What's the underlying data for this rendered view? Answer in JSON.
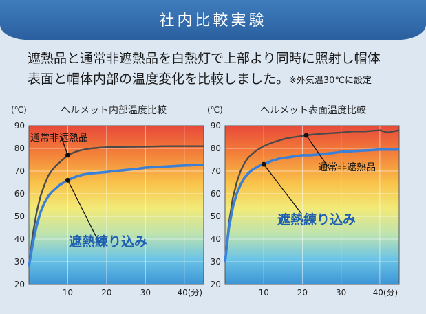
{
  "header": {
    "title": "社内比較実験"
  },
  "intro": {
    "line1": "遮熱品と通常非遮熱品を白熱灯で上部より同時に照射し帽体",
    "line2": "表面と帽体内部の温度変化を比較しました。",
    "note": "※外気温30℃に設定"
  },
  "chart_data": [
    {
      "type": "line",
      "title": "ヘルメット内部温度比較",
      "xlabel": "(分)",
      "ylabel": "(℃)",
      "xlim": [
        0,
        45
      ],
      "ylim": [
        20,
        90
      ],
      "x_ticks": [
        10,
        20,
        30,
        40
      ],
      "x_tick_labels": [
        "10",
        "20",
        "30",
        "40(分)"
      ],
      "y_ticks": [
        20,
        30,
        40,
        50,
        60,
        70,
        80,
        90
      ],
      "grid": true,
      "series": [
        {
          "name": "通常非遮熱品",
          "color": "#4a4a4a",
          "x": [
            0,
            1,
            2,
            3,
            4,
            5,
            6,
            7,
            8,
            9,
            10,
            12,
            14,
            16,
            18,
            20,
            25,
            30,
            35,
            40,
            45
          ],
          "y": [
            28,
            42,
            52,
            59,
            64,
            68,
            70.5,
            72.5,
            74,
            75.5,
            77,
            78.5,
            79.5,
            80,
            80.3,
            80.5,
            80.7,
            80.8,
            81,
            81,
            81
          ]
        },
        {
          "name": "遮熱練り込み",
          "color": "#3a80d6",
          "x": [
            0,
            1,
            2,
            3,
            4,
            5,
            6,
            7,
            8,
            9,
            10,
            12,
            14,
            16,
            18,
            20,
            22,
            25,
            28,
            30,
            35,
            40,
            45
          ],
          "y": [
            28,
            38,
            46,
            52,
            56,
            59,
            61,
            62.5,
            64,
            65,
            66,
            67.5,
            68.5,
            69,
            69.3,
            69.6,
            70,
            70.5,
            71,
            71.5,
            72,
            72.5,
            72.8
          ]
        }
      ],
      "annotations": [
        {
          "text": "通常非遮熱品",
          "series": "通常非遮熱品",
          "at_x": 10
        },
        {
          "text": "遮熱練り込み",
          "series": "遮熱練り込み",
          "at_x": 10
        }
      ]
    },
    {
      "type": "line",
      "title": "ヘルメット表面温度比較",
      "xlabel": "(分)",
      "ylabel": "(℃)",
      "xlim": [
        0,
        45
      ],
      "ylim": [
        20,
        90
      ],
      "x_ticks": [
        10,
        20,
        30,
        40
      ],
      "x_tick_labels": [
        "10",
        "20",
        "30",
        "40(分)"
      ],
      "y_ticks": [
        20,
        30,
        40,
        50,
        60,
        70,
        80,
        90
      ],
      "grid": true,
      "series": [
        {
          "name": "通常非遮熱品",
          "color": "#4a4a4a",
          "x": [
            0,
            1,
            2,
            3,
            4,
            5,
            6,
            7,
            8,
            9,
            10,
            12,
            14,
            16,
            18,
            20,
            22,
            25,
            28,
            30,
            33,
            36,
            40,
            42,
            45
          ],
          "y": [
            30,
            47,
            58,
            65,
            70,
            73.5,
            76,
            77.5,
            79,
            80,
            81,
            82.5,
            83.5,
            84.5,
            85,
            85.5,
            86,
            86.5,
            86.8,
            87,
            87.5,
            87.5,
            88,
            87,
            88
          ]
        },
        {
          "name": "遮熱練り込み",
          "color": "#3a80d6",
          "x": [
            0,
            1,
            2,
            3,
            4,
            5,
            6,
            7,
            8,
            9,
            10,
            12,
            14,
            16,
            18,
            20,
            22,
            25,
            28,
            30,
            35,
            40,
            45
          ],
          "y": [
            30,
            45,
            54,
            60,
            64,
            67,
            69,
            70.5,
            71.5,
            72.5,
            73,
            74.5,
            75.5,
            76,
            76.5,
            77,
            77,
            77.5,
            78,
            78.5,
            79,
            79.5,
            79.5
          ]
        }
      ],
      "annotations": [
        {
          "text": "通常非遮熱品",
          "series": "通常非遮熱品",
          "at_x": 21
        },
        {
          "text": "遮熱練り込み",
          "series": "遮熱練り込み",
          "at_x": 10
        }
      ]
    }
  ]
}
